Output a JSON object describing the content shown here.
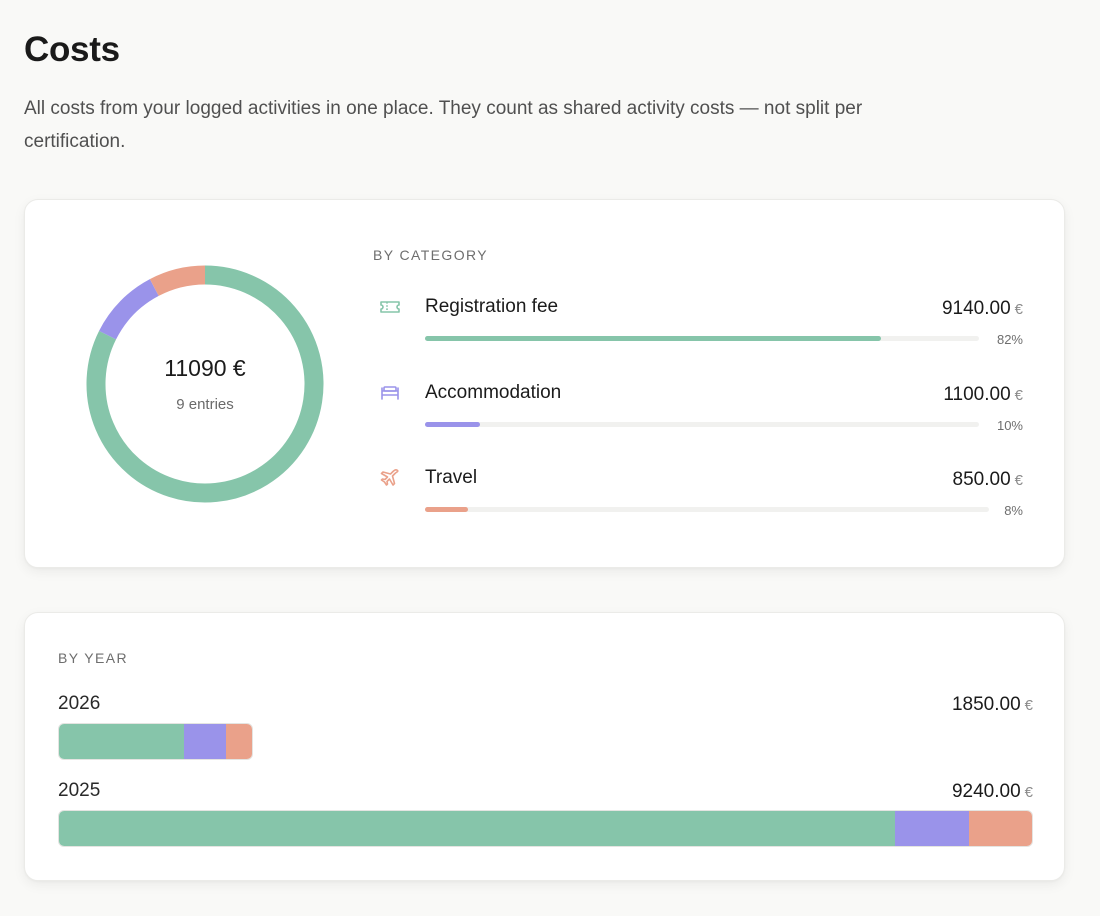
{
  "header": {
    "title": "Costs",
    "description": "All costs from your logged activities in one place. They count as shared activity costs — not split per certification."
  },
  "summary": {
    "total": "11090 €",
    "entries": "9 entries"
  },
  "categories_section": {
    "label": "BY CATEGORY",
    "currency": "€",
    "items": [
      {
        "name": "Registration fee",
        "amount": "9140.00",
        "percent_label": "82%",
        "percent": 82.4,
        "color": "#86c5aa",
        "icon": "ticket-icon"
      },
      {
        "name": "Accommodation",
        "amount": "1100.00",
        "percent_label": "10%",
        "percent": 9.9,
        "color": "#9a93ea",
        "icon": "bed-icon"
      },
      {
        "name": "Travel",
        "amount": "850.00",
        "percent_label": "8%",
        "percent": 7.7,
        "color": "#eaa18a",
        "icon": "plane-icon"
      }
    ]
  },
  "years_section": {
    "label": "BY YEAR",
    "currency": "€",
    "items": [
      {
        "year": "2026",
        "amount": "1850.00",
        "value": 1850,
        "segments": [
          1200,
          400,
          250
        ]
      },
      {
        "year": "2025",
        "amount": "9240.00",
        "value": 9240,
        "segments": [
          7940,
          700,
          600
        ]
      }
    ]
  }
}
